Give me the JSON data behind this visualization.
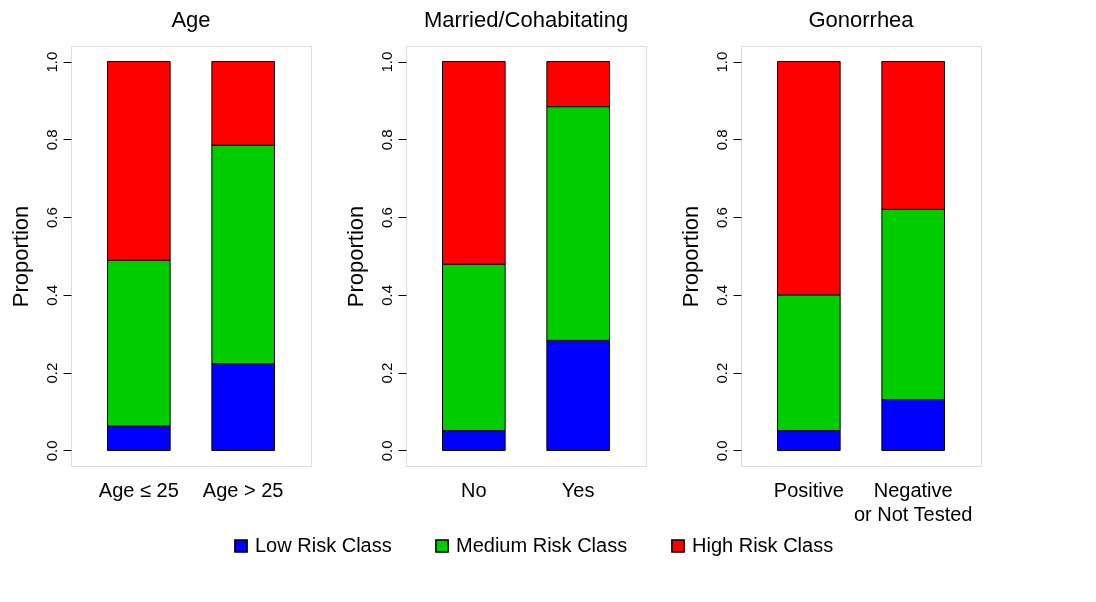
{
  "chart_data": [
    {
      "type": "bar",
      "title": "Age",
      "ylabel": "Proportion",
      "categories": [
        "Age ≤ 25",
        "Age > 25"
      ],
      "stacked": true,
      "ylim": [
        -0.04,
        1.04
      ],
      "yticks": [
        {
          "value": 0,
          "label": "0.0"
        },
        0.2,
        0.4,
        0.6,
        0.8,
        {
          "value": 1,
          "label": "1.0"
        }
      ],
      "grid": false,
      "legend": false,
      "series": [
        {
          "color": "#0000ff",
          "values": [
            0.063,
            0.223
          ]
        },
        {
          "color": "#00cd00",
          "values": [
            0.426,
            0.562
          ]
        },
        {
          "color": "#ff0000",
          "values": [
            0.511,
            0.215
          ]
        }
      ]
    },
    {
      "type": "bar",
      "title": "Married/Cohabitating",
      "ylabel": "Proportion",
      "categories": [
        "No",
        "Yes"
      ],
      "stacked": true,
      "ylim": [
        -0.04,
        1.04
      ],
      "yticks": [
        {
          "value": 0,
          "label": "0.0"
        },
        0.2,
        0.4,
        0.6,
        0.8,
        {
          "value": 1,
          "label": "1.0"
        }
      ],
      "grid": false,
      "legend": "bottom",
      "series": [
        {
          "name": "Low Risk Class",
          "color": "#0000ff",
          "values": [
            0.051,
            0.283
          ]
        },
        {
          "name": "Medium Risk Class",
          "color": "#00cd00",
          "values": [
            0.428,
            0.601
          ]
        },
        {
          "name": "High Risk Class",
          "color": "#ff0000",
          "values": [
            0.521,
            0.116
          ]
        }
      ]
    },
    {
      "type": "bar",
      "title": "Gonorrhea",
      "ylabel": "Proportion",
      "categories": [
        "Positive",
        "Negative\nor Not Tested"
      ],
      "stacked": true,
      "ylim": [
        -0.04,
        1.04
      ],
      "yticks": [
        {
          "value": 0,
          "label": "0.0"
        },
        0.2,
        0.4,
        0.6,
        0.8,
        {
          "value": 1,
          "label": "1.0"
        }
      ],
      "grid": false,
      "legend": false,
      "series": [
        {
          "color": "#0000ff",
          "values": [
            0.051,
            0.131
          ]
        },
        {
          "color": "#00cd00",
          "values": [
            0.349,
            0.489
          ]
        },
        {
          "color": "#ff0000",
          "values": [
            0.6,
            0.38
          ]
        }
      ]
    }
  ]
}
